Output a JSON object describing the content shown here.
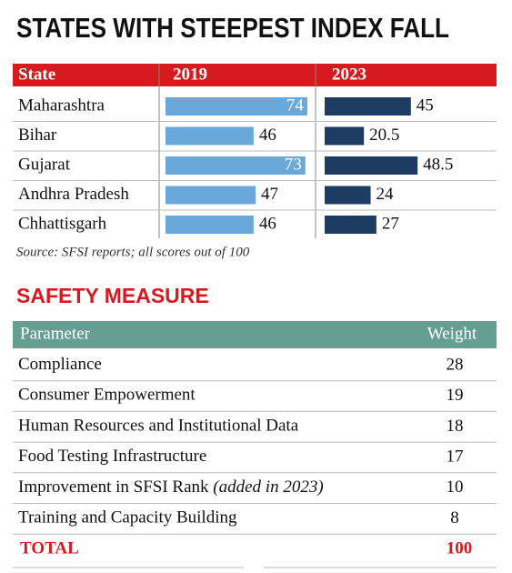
{
  "chart_data": {
    "type": "bar",
    "title": "STATES WITH STEEPEST INDEX FALL",
    "category_label": "State",
    "categories": [
      "Maharashtra",
      "Bihar",
      "Gujarat",
      "Andhra Pradesh",
      "Chhattisgarh"
    ],
    "series": [
      {
        "name": "2019",
        "color": "#6aa8da",
        "values": [
          74,
          46,
          73,
          47,
          46
        ]
      },
      {
        "name": "2023",
        "color": "#1e3c63",
        "values": [
          45,
          20.5,
          48.5,
          24,
          27
        ]
      }
    ],
    "xlim": [
      0,
      75
    ],
    "header_color": "#d71920",
    "source": "Source: SFSI reports; all scores out of 100"
  },
  "table": {
    "title": "SAFETY MEASURE",
    "header_color": "#669f92",
    "columns": [
      "Parameter",
      "Weight"
    ],
    "rows": [
      {
        "parameter": "Compliance",
        "weight": 28
      },
      {
        "parameter": "Consumer Empowerment",
        "weight": 19
      },
      {
        "parameter": "Human Resources and Institutional Data",
        "weight": 18
      },
      {
        "parameter": "Food Testing Infrastructure",
        "weight": 17
      },
      {
        "parameter": "Improvement in SFSI Rank",
        "note": "(added in 2023)",
        "weight": 10
      },
      {
        "parameter": "Training and Capacity Building",
        "weight": 8
      }
    ],
    "total": {
      "label": "TOTAL",
      "value": 100
    }
  }
}
